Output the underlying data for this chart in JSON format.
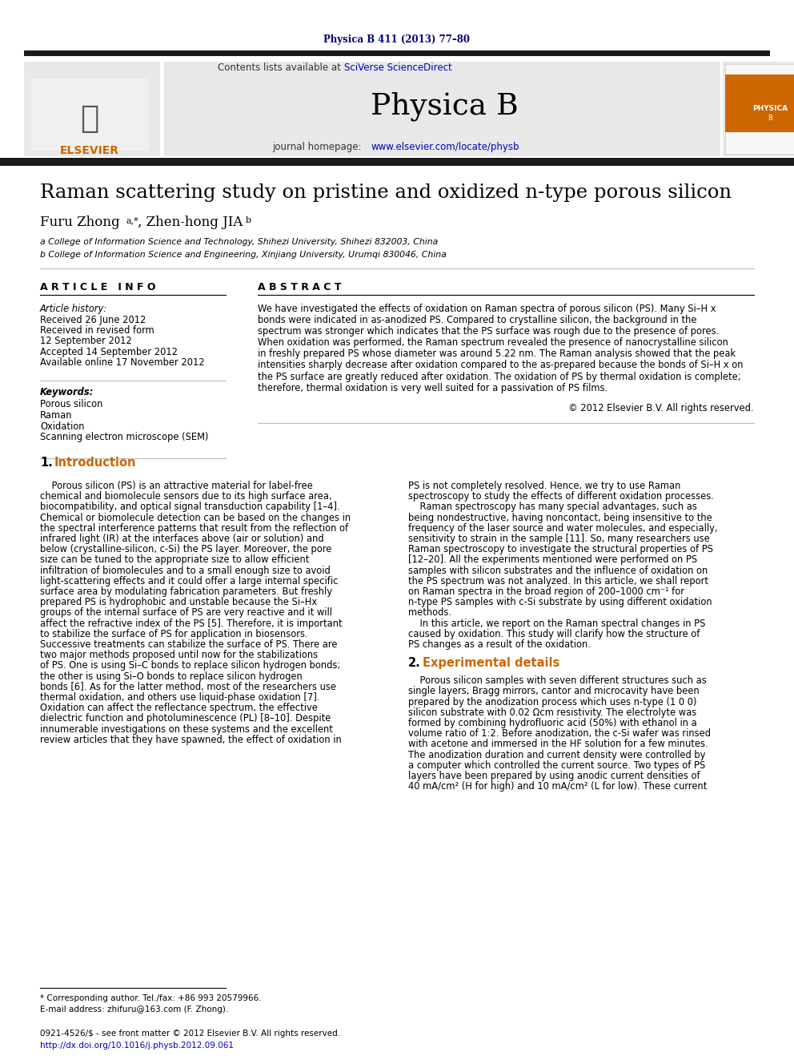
{
  "journal_header": "Physica B 411 (2013) 77–80",
  "journal_name": "Physica B",
  "contents_line": "Contents lists available at SciVerse ScienceDirect",
  "journal_homepage": "journal homepage: www.elsevier.com/locate/physb",
  "title": "Raman scattering study on pristine and oxidized n-type porous silicon",
  "affil_a": "a College of Information Science and Technology, Shihezi University, Shihezi 832003, China",
  "affil_b": "b College of Information Science and Engineering, Xinjiang University, Urumqi 830046, China",
  "article_info_header": "A R T I C L E   I N F O",
  "article_history_label": "Article history:",
  "received": "Received 26 June 2012",
  "received_revised": "Received in revised form",
  "revised_date": "12 September 2012",
  "accepted": "Accepted 14 September 2012",
  "available": "Available online 17 November 2012",
  "keywords_label": "Keywords:",
  "keywords": [
    "Porous silicon",
    "Raman",
    "Oxidation",
    "Scanning electron microscope (SEM)"
  ],
  "abstract_header": "A B S T R A C T",
  "copyright": "© 2012 Elsevier B.V. All rights reserved.",
  "footnote_star": "* Corresponding author. Tel./fax: +86 993 20579966.",
  "footnote_email": "E-mail address: zhifuru@163.com (F. Zhong).",
  "footer_line1": "0921-4526/$ - see front matter © 2012 Elsevier B.V. All rights reserved.",
  "footer_line2": "http://dx.doi.org/10.1016/j.physb.2012.09.061",
  "bg_color": "#ffffff",
  "black_bar_color": "#1a1a1a",
  "link_color": "#0000cc",
  "section_color": "#cc6600",
  "journal_header_color": "#000080",
  "abstract_lines": [
    "We have investigated the effects of oxidation on Raman spectra of porous silicon (PS). Many Si–H x",
    "bonds were indicated in as-anodized PS. Compared to crystalline silicon, the background in the",
    "spectrum was stronger which indicates that the PS surface was rough due to the presence of pores.",
    "When oxidation was performed, the Raman spectrum revealed the presence of nanocrystalline silicon",
    "in freshly prepared PS whose diameter was around 5.22 nm. The Raman analysis showed that the peak",
    "intensities sharply decrease after oxidation compared to the as-prepared because the bonds of Si–H x on",
    "the PS surface are greatly reduced after oxidation. The oxidation of PS by thermal oxidation is complete;",
    "therefore, thermal oxidation is very well suited for a passivation of PS films."
  ],
  "col1_lines": [
    "    Porous silicon (PS) is an attractive material for label-free",
    "chemical and biomolecule sensors due to its high surface area,",
    "biocompatibility, and optical signal transduction capability [1–4].",
    "Chemical or biomolecule detection can be based on the changes in",
    "the spectral interference patterns that result from the reflection of",
    "infrared light (IR) at the interfaces above (air or solution) and",
    "below (crystalline-silicon, c-Si) the PS layer. Moreover, the pore",
    "size can be tuned to the appropriate size to allow efficient",
    "infiltration of biomolecules and to a small enough size to avoid",
    "light-scattering effects and it could offer a large internal specific",
    "surface area by modulating fabrication parameters. But freshly",
    "prepared PS is hydrophobic and unstable because the Si–Hx",
    "groups of the internal surface of PS are very reactive and it will",
    "affect the refractive index of the PS [5]. Therefore, it is important",
    "to stabilize the surface of PS for application in biosensors.",
    "Successive treatments can stabilize the surface of PS. There are",
    "two major methods proposed until now for the stabilizations",
    "of PS. One is using Si–C bonds to replace silicon hydrogen bonds;",
    "the other is using Si–O bonds to replace silicon hydrogen",
    "bonds [6]. As for the latter method, most of the researchers use",
    "thermal oxidation, and others use liquid-phase oxidation [7].",
    "Oxidation can affect the reflectance spectrum, the effective",
    "dielectric function and photoluminescence (PL) [8–10]. Despite",
    "innumerable investigations on these systems and the excellent",
    "review articles that they have spawned, the effect of oxidation in"
  ],
  "col2_lines": [
    "PS is not completely resolved. Hence, we try to use Raman",
    "spectroscopy to study the effects of different oxidation processes.",
    "    Raman spectroscopy has many special advantages, such as",
    "being nondestructive, having noncontact, being insensitive to the",
    "frequency of the laser source and water molecules, and especially,",
    "sensitivity to strain in the sample [11]. So, many researchers use",
    "Raman spectroscopy to investigate the structural properties of PS",
    "[12–20]. All the experiments mentioned were performed on PS",
    "samples with silicon substrates and the influence of oxidation on",
    "the PS spectrum was not analyzed. In this article, we shall report",
    "on Raman spectra in the broad region of 200–1000 cm⁻¹ for",
    "n-type PS samples with c-Si substrate by using different oxidation",
    "methods.",
    "    In this article, we report on the Raman spectral changes in PS",
    "caused by oxidation. This study will clarify how the structure of",
    "PS changes as a result of the oxidation."
  ],
  "exp_lines": [
    "    Porous silicon samples with seven different structures such as",
    "single layers, Bragg mirrors, cantor and microcavity have been",
    "prepared by the anodization process which uses n-type (1 0 0)",
    "silicon substrate with 0.02 Ωcm resistivity. The electrolyte was",
    "formed by combining hydrofluoric acid (50%) with ethanol in a",
    "volume ratio of 1:2. Before anodization, the c-Si wafer was rinsed",
    "with acetone and immersed in the HF solution for a few minutes.",
    "The anodization duration and current density were controlled by",
    "a computer which controlled the current source. Two types of PS",
    "layers have been prepared by using anodic current densities of",
    "40 mA/cm² (H for high) and 10 mA/cm² (L for low). These current"
  ]
}
